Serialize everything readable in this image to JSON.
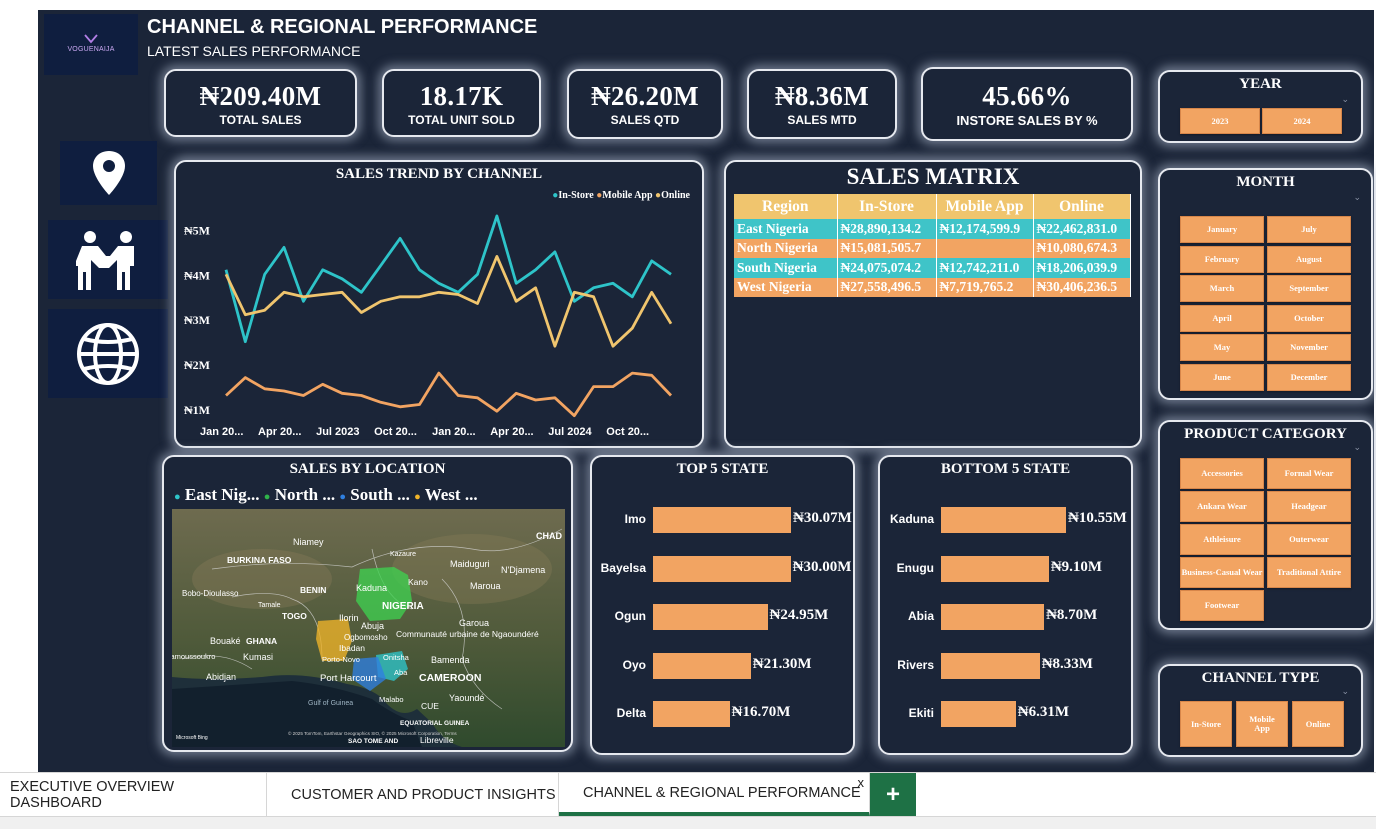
{
  "header": {
    "logo_text": "VOGUENAIJA",
    "title": "CHANNEL & REGIONAL PERFORMANCE",
    "subtitle": "LATEST SALES PERFORMANCE"
  },
  "kpis": [
    {
      "value": "₦209.40M",
      "label": "TOTAL SALES"
    },
    {
      "value": "18.17K",
      "label": "TOTAL UNIT SOLD"
    },
    {
      "value": "₦26.20M",
      "label": "SALES QTD"
    },
    {
      "value": "₦8.36M",
      "label": "SALES MTD"
    },
    {
      "value": "45.66%",
      "label": "INSTORE SALES BY %"
    }
  ],
  "nav_icons": [
    "location-pin-icon",
    "handshake-people-icon",
    "globe-icon"
  ],
  "slicers": {
    "year": {
      "title": "YEAR",
      "options": [
        "2023",
        "2024"
      ]
    },
    "month": {
      "title": "MONTH",
      "options": [
        "January",
        "July",
        "February",
        "August",
        "March",
        "September",
        "April",
        "October",
        "May",
        "November",
        "June",
        "December"
      ]
    },
    "category": {
      "title": "PRODUCT CATEGORY",
      "options": [
        "Accessories",
        "Formal Wear",
        "Ankara Wear",
        "Headgear",
        "Athleisure",
        "Outerwear",
        "Business-Casual Wear",
        "Traditional Attire",
        "Footwear"
      ]
    },
    "channel": {
      "title": "CHANNEL TYPE",
      "options": [
        "In-Store",
        "Mobile App",
        "Online"
      ]
    }
  },
  "trend": {
    "title": "SALES TREND BY CHANNEL",
    "legend": [
      {
        "name": "In-Store",
        "color": "#2ec4c9"
      },
      {
        "name": "Mobile App",
        "color": "#f2a462"
      },
      {
        "name": "Online",
        "color": "#f0c56e"
      }
    ],
    "y_ticks": [
      "₦5M",
      "₦4M",
      "₦3M",
      "₦2M",
      "₦1M"
    ],
    "x_ticks": [
      "Jan 20...",
      "Apr 20...",
      "Jul 2023",
      "Oct 20...",
      "Jan 20...",
      "Apr 20...",
      "Jul 2024",
      "Oct 20..."
    ]
  },
  "chart_data": [
    {
      "type": "line",
      "title": "SALES TREND BY CHANNEL",
      "x": [
        "Jan 2023",
        "Feb 2023",
        "Mar 2023",
        "Apr 2023",
        "May 2023",
        "Jun 2023",
        "Jul 2023",
        "Aug 2023",
        "Sep 2023",
        "Oct 2023",
        "Nov 2023",
        "Dec 2023",
        "Jan 2024",
        "Feb 2024",
        "Mar 2024",
        "Apr 2024",
        "May 2024",
        "Jun 2024",
        "Jul 2024",
        "Aug 2024",
        "Sep 2024",
        "Oct 2024",
        "Nov 2024",
        "Dec 2024"
      ],
      "y_range": [
        1,
        5.5
      ],
      "series": [
        {
          "name": "In-Store",
          "values": [
            4.1,
            2.5,
            4.0,
            4.6,
            3.4,
            4.1,
            3.9,
            3.6,
            4.2,
            4.8,
            4.1,
            3.8,
            3.6,
            4.0,
            5.3,
            3.8,
            4.1,
            4.5,
            3.4,
            3.7,
            3.8,
            3.5,
            4.3,
            4.0
          ]
        },
        {
          "name": "Mobile App",
          "values": [
            1.3,
            1.7,
            1.45,
            1.4,
            1.3,
            1.55,
            1.35,
            1.3,
            1.15,
            1.05,
            1.1,
            1.8,
            1.3,
            1.25,
            0.95,
            1.35,
            1.2,
            1.25,
            0.85,
            1.5,
            1.5,
            1.8,
            1.75,
            1.3
          ]
        },
        {
          "name": "Online",
          "values": [
            4.0,
            3.1,
            3.2,
            3.6,
            3.5,
            3.55,
            3.6,
            3.15,
            3.4,
            3.5,
            3.5,
            3.6,
            3.55,
            3.35,
            4.4,
            3.4,
            3.7,
            2.4,
            3.6,
            3.5,
            2.4,
            2.8,
            3.6,
            2.9
          ]
        }
      ]
    },
    {
      "type": "table",
      "title": "SALES MATRIX",
      "columns": [
        "Region",
        "In-Store",
        "Mobile App",
        "Online"
      ],
      "rows": [
        [
          "East Nigeria",
          "₦28,890,134.2",
          "₦12,174,599.9",
          "₦22,462,831.0"
        ],
        [
          "North Nigeria",
          "₦15,081,505.7",
          "",
          "₦10,080,674.3"
        ],
        [
          "South Nigeria",
          "₦24,075,074.2",
          "₦12,742,211.0",
          "₦18,206,039.9"
        ],
        [
          "West Nigeria",
          "₦27,558,496.5",
          "₦7,719,765.2",
          "₦30,406,236.5"
        ]
      ]
    },
    {
      "type": "bar",
      "title": "TOP 5 STATE",
      "categories": [
        "Imo",
        "Bayelsa",
        "Ogun",
        "Oyo",
        "Delta"
      ],
      "values": [
        30.07,
        30.0,
        24.95,
        21.3,
        16.7
      ],
      "labels": [
        "₦30.07M",
        "₦30.00M",
        "₦24.95M",
        "₦21.30M",
        "₦16.70M"
      ],
      "xlim": [
        0,
        30.07
      ]
    },
    {
      "type": "bar",
      "title": "BOTTOM 5 STATE",
      "categories": [
        "Kaduna",
        "Enugu",
        "Abia",
        "Rivers",
        "Ekiti"
      ],
      "values": [
        10.55,
        9.1,
        8.7,
        8.33,
        6.31
      ],
      "labels": [
        "₦10.55M",
        "₦9.10M",
        "₦8.70M",
        "₦8.33M",
        "₦6.31M"
      ],
      "xlim": [
        0,
        10.55
      ]
    }
  ],
  "matrix": {
    "title": "SALES MATRIX",
    "columns": [
      "Region",
      "In-Store",
      "Mobile App",
      "Online"
    ],
    "rows": [
      [
        "East Nigeria",
        "₦28,890,134.2",
        "₦12,174,599.9",
        "₦22,462,831.0"
      ],
      [
        "North Nigeria",
        "₦15,081,505.7",
        "",
        "₦10,080,674.3"
      ],
      [
        "South Nigeria",
        "₦24,075,074.2",
        "₦12,742,211.0",
        "₦18,206,039.9"
      ],
      [
        "West Nigeria",
        "₦27,558,496.5",
        "₦7,719,765.2",
        "₦30,406,236.5"
      ]
    ]
  },
  "map": {
    "title": "SALES BY LOCATION",
    "legend": [
      {
        "name": "East Nig...",
        "color": "#2ec4c9"
      },
      {
        "name": "North ...",
        "color": "#2fb34a"
      },
      {
        "name": "South ...",
        "color": "#2f7fe0"
      },
      {
        "name": "West ...",
        "color": "#f0b429"
      }
    ],
    "places": [
      "Niamey",
      "BURKINA FASO",
      "Kazaure",
      "Maiduguri",
      "N'Djamena",
      "CHAD",
      "Kano",
      "Bobo-Dioulasso",
      "BENIN",
      "Kaduna",
      "Maroua",
      "Tamale",
      "NIGERIA",
      "TOGO",
      "Ilorin",
      "Abuja",
      "Garoua",
      "Ogbomosho",
      "Communauté urbaine de Ngaoundéré",
      "Bouaké",
      "GHANA",
      "Ibadan",
      "Yamoussoukro",
      "Kumasi",
      "Porto-Novo",
      "Onitsha",
      "Bamenda",
      "Abidjan",
      "Port Harcourt",
      "Aba",
      "CAMEROON",
      "Gulf of Guinea",
      "Malabo",
      "CUE",
      "Yaoundé",
      "EQUATORIAL GUINEA",
      "SAO TOME AND",
      "Libreville"
    ],
    "attribution": "Microsoft Bing",
    "copyright": "© 2025 TomTom, Earthstar Geographics SIO, © 2025 Microsoft Corporation, Terms"
  },
  "top5": {
    "title": "TOP 5 STATE"
  },
  "bottom5": {
    "title": "BOTTOM 5 STATE"
  },
  "tabs": [
    {
      "label": "EXECUTIVE OVERVIEW DASHBOARD",
      "active": false
    },
    {
      "label": "CUSTOMER AND PRODUCT INSIGHTS",
      "active": false
    },
    {
      "label": "CHANNEL & REGIONAL PERFORMANCE",
      "active": true
    }
  ],
  "tab_close": "x",
  "tab_add": "+",
  "colors": {
    "background": "#1b2538",
    "accent_orange": "#f2a462",
    "accent_teal": "#2ec4c9",
    "accent_gold": "#f0c56e",
    "tab_active": "#1e7145"
  }
}
